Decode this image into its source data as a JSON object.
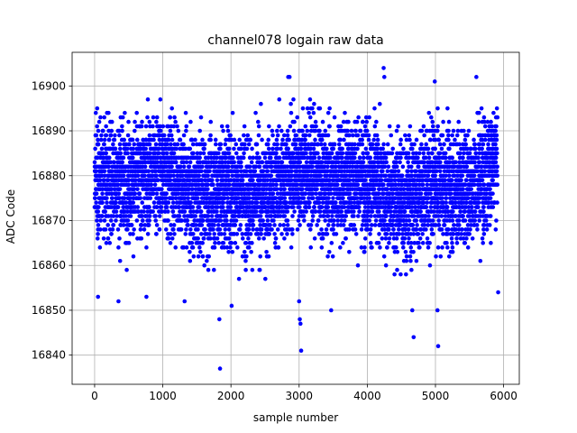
{
  "chart_data": {
    "type": "scatter",
    "title": "channel078 logain raw data",
    "xlabel": "sample number",
    "ylabel": "ADC Code",
    "xlim": [
      -330,
      6230
    ],
    "ylim": [
      16833.5,
      16907.5
    ],
    "xticks": [
      0,
      1000,
      2000,
      3000,
      4000,
      5000,
      6000
    ],
    "yticks": [
      16840,
      16850,
      16860,
      16870,
      16880,
      16890,
      16900
    ],
    "xtick_labels": [
      "0",
      "1000",
      "2000",
      "3000",
      "4000",
      "5000",
      "6000"
    ],
    "ytick_labels": [
      "16840",
      "16850",
      "16860",
      "16870",
      "16880",
      "16890",
      "16900"
    ],
    "grid": true,
    "marker_color": "#0000ff",
    "series": [
      {
        "n_points": 5910,
        "x_range": [
          0,
          5910
        ],
        "y_center": 16878,
        "y_core_range": [
          16860,
          16894
        ],
        "outliers": [
          {
            "x": 50,
            "y": 16853
          },
          {
            "x": 350,
            "y": 16852
          },
          {
            "x": 760,
            "y": 16853
          },
          {
            "x": 1320,
            "y": 16852
          },
          {
            "x": 1830,
            "y": 16848
          },
          {
            "x": 1840,
            "y": 16837
          },
          {
            "x": 2010,
            "y": 16851
          },
          {
            "x": 2840,
            "y": 16902
          },
          {
            "x": 2860,
            "y": 16902
          },
          {
            "x": 3000,
            "y": 16852
          },
          {
            "x": 3010,
            "y": 16848
          },
          {
            "x": 3020,
            "y": 16847
          },
          {
            "x": 3030,
            "y": 16841
          },
          {
            "x": 3470,
            "y": 16850
          },
          {
            "x": 4240,
            "y": 16904
          },
          {
            "x": 4250,
            "y": 16902
          },
          {
            "x": 4660,
            "y": 16850
          },
          {
            "x": 4680,
            "y": 16844
          },
          {
            "x": 4990,
            "y": 16901
          },
          {
            "x": 5030,
            "y": 16850
          },
          {
            "x": 5040,
            "y": 16842
          },
          {
            "x": 5600,
            "y": 16902
          },
          {
            "x": 5920,
            "y": 16854
          }
        ]
      }
    ]
  }
}
